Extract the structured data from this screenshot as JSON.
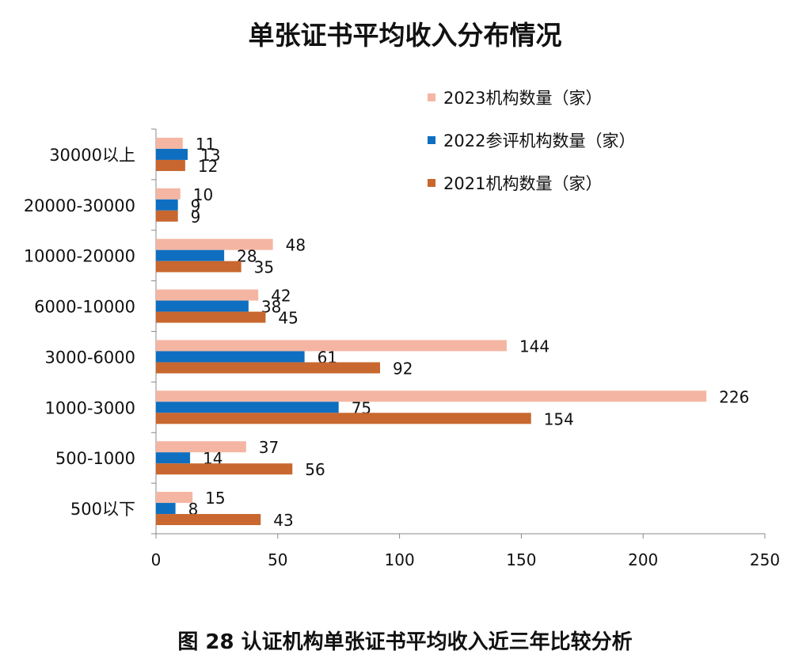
{
  "title": "单张证书平均收入分布情况",
  "caption": "图 28 认证机构单张证书平均收入近三年比较分析",
  "chart_data": {
    "type": "bar",
    "orientation": "horizontal",
    "title": "单张证书平均收入分布情况",
    "categories": [
      "30000以上",
      "20000-30000",
      "10000-20000",
      "6000-10000",
      "3000-6000",
      "1000-3000",
      "500-1000",
      "500以下"
    ],
    "series": [
      {
        "name": "2023机构数量（家）",
        "color": "#F4B6A3",
        "values": [
          11,
          10,
          48,
          42,
          144,
          226,
          37,
          15
        ]
      },
      {
        "name": "2022参评机构数量（家）",
        "color": "#0E6FC1",
        "values": [
          13,
          9,
          28,
          38,
          61,
          75,
          14,
          8
        ]
      },
      {
        "name": "2021机构数量（家）",
        "color": "#C8672F",
        "values": [
          12,
          9,
          35,
          45,
          92,
          154,
          56,
          43
        ]
      }
    ],
    "xlim": [
      0,
      250
    ],
    "xticks": [
      0,
      50,
      100,
      150,
      200,
      250
    ],
    "grid": false,
    "legend_position": "top-right",
    "data_labels": true
  }
}
